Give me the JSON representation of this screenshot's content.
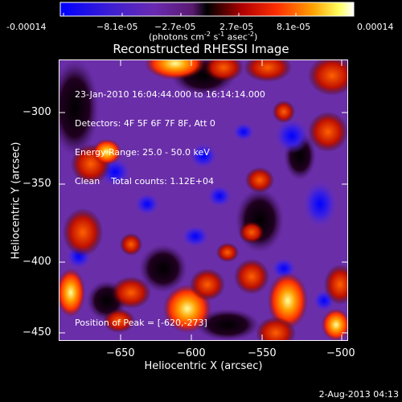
{
  "colorbar": {
    "tick_labels": [
      "-0.00014",
      "−8.1e-05",
      "−2.7e-05",
      "2.7e-05",
      "8.1e-05",
      "0.00014"
    ],
    "units_label": "(photons cm",
    "units_exp1": "-2",
    "units_mid": " s",
    "units_exp2": "-1",
    "units_mid2": " asec",
    "units_exp3": "-2",
    "units_end": ")",
    "range": [
      -0.00014,
      0.00014
    ],
    "colors": [
      "#0000ff",
      "#ffffff"
    ]
  },
  "plot": {
    "title": "Reconstructed RHESSI Image",
    "info": {
      "line1": "23-Jan-2010 16:04:44.000 to 16:14:14.000",
      "line2": "Detectors: 4F 5F 6F 7F 8F, Att 0",
      "line3": "Energy Range: 25.0 - 50.0 keV",
      "line4": "Clean    Total counts: 1.12E+04"
    },
    "peak_text": "Position of Peak = [-620,-273]",
    "xlabel": "Heliocentric X (arcsec)",
    "ylabel": "Heliocentric Y (arcsec)",
    "x_ticks": [
      "−650",
      "−600",
      "−550",
      "−500"
    ],
    "y_ticks": [
      "−300",
      "−350",
      "−400",
      "−450"
    ]
  },
  "footer": {
    "timestamp": "2-Aug-2013 04:13"
  }
}
